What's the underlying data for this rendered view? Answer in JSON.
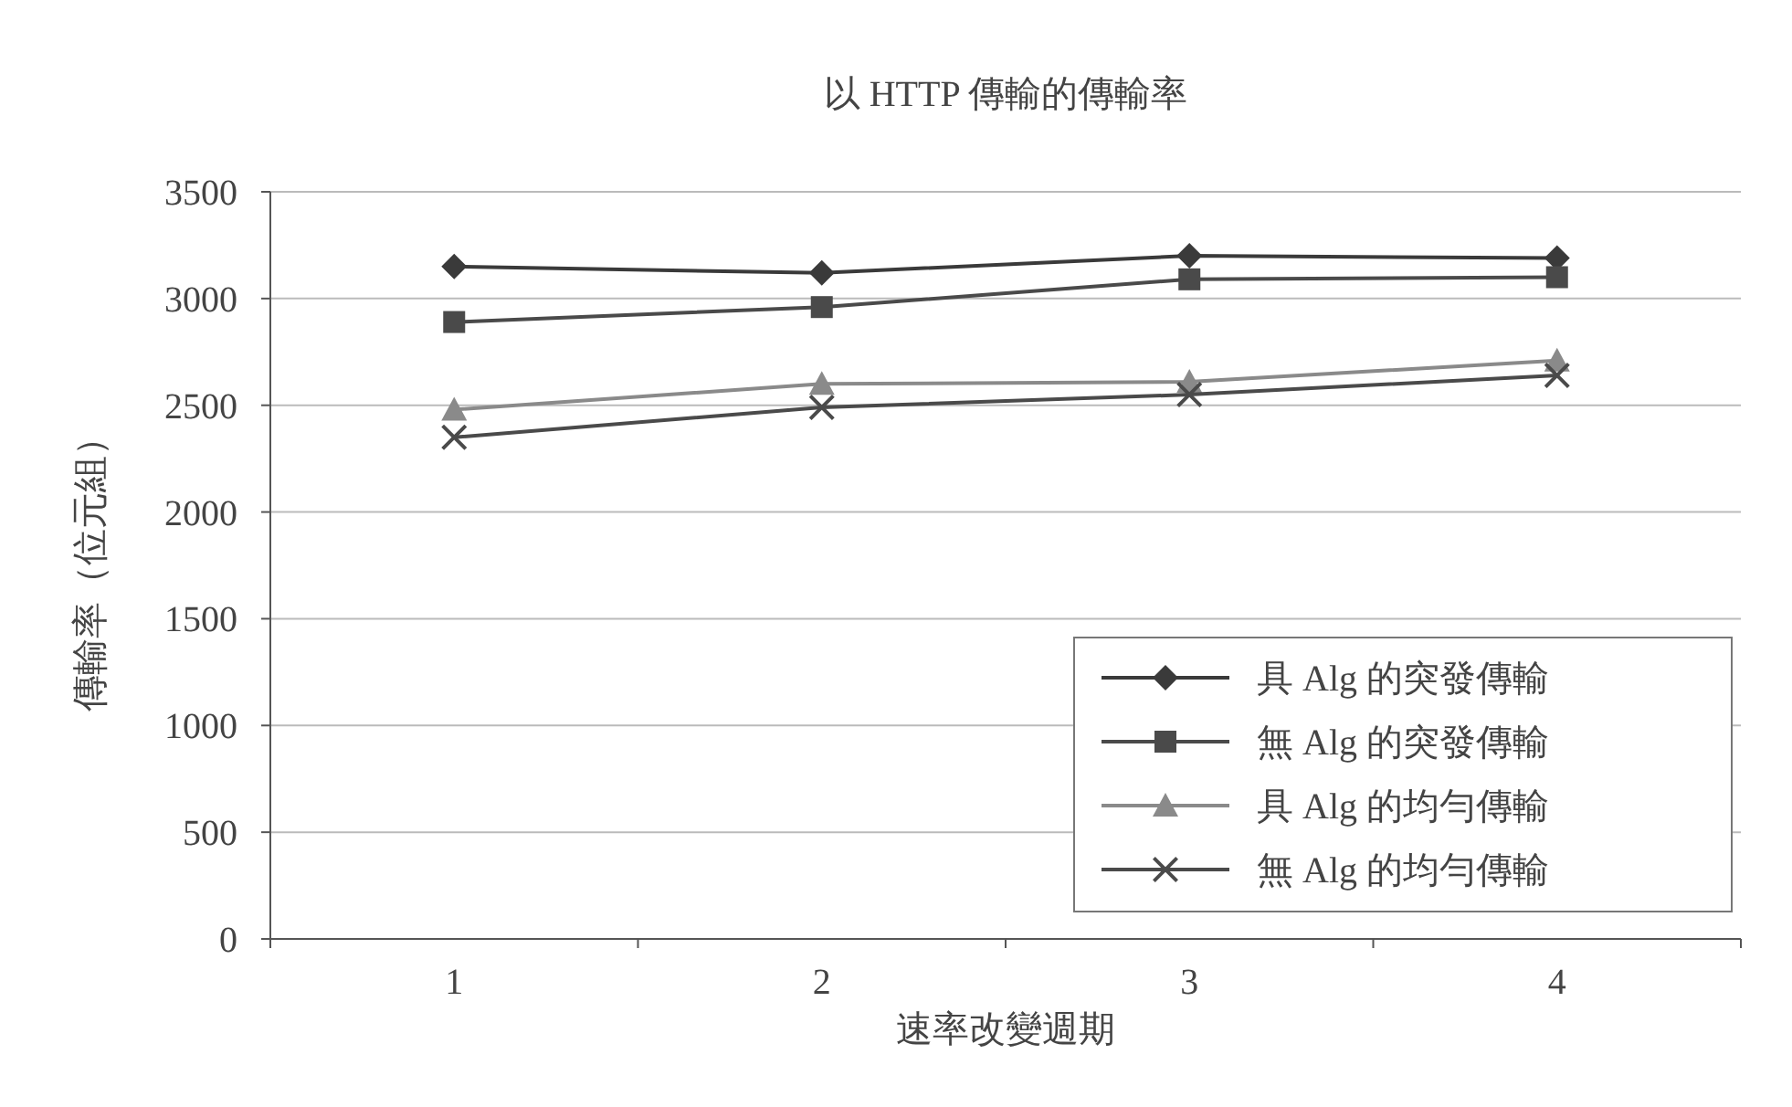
{
  "chart_data": {
    "type": "line",
    "title": "以 HTTP 傳輸的傳輸率",
    "xlabel": "速率改變週期",
    "ylabel": "傳輸率（位元組）",
    "categories": [
      "1",
      "2",
      "3",
      "4"
    ],
    "series": [
      {
        "name": "具 Alg 的突發傳輸",
        "color": "#3a3a3a",
        "marker": "diamond",
        "values": [
          3150,
          3120,
          3200,
          3190
        ]
      },
      {
        "name": "無 Alg 的突發傳輸",
        "color": "#4a4a4a",
        "marker": "square",
        "values": [
          2890,
          2960,
          3090,
          3100
        ]
      },
      {
        "name": "具 Alg 的均勻傳輸",
        "color": "#8a8a8a",
        "marker": "triangle",
        "values": [
          2480,
          2600,
          2610,
          2710
        ]
      },
      {
        "name": "無 Alg 的均勻傳輸",
        "color": "#4a4a4a",
        "marker": "cross",
        "values": [
          2350,
          2490,
          2550,
          2640
        ]
      }
    ],
    "ylim": [
      0,
      3500
    ],
    "yticks": [
      0,
      500,
      1000,
      1500,
      2000,
      2500,
      3000,
      3500
    ],
    "grid": "y",
    "legend": "bottom right",
    "line_style": "solid"
  }
}
